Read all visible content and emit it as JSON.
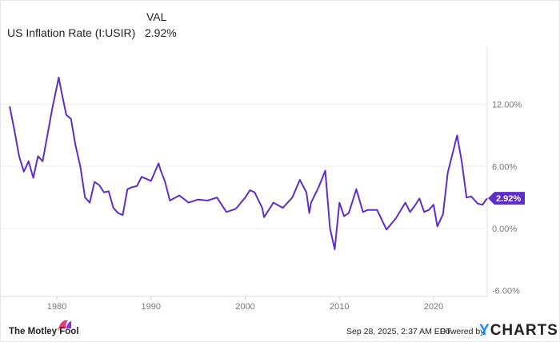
{
  "legend": {
    "col_header": "VAL",
    "series_label": "US Inflation Rate (I:USIR)",
    "series_value": "2.92%"
  },
  "chart_data": {
    "type": "line",
    "title": "US Inflation Rate (I:USIR)",
    "xlabel": "",
    "ylabel": "",
    "xlim": [
      1975,
      2025.75
    ],
    "ylim": [
      -6,
      16
    ],
    "x_ticks": [
      1980,
      1990,
      2000,
      2010,
      2020
    ],
    "x_tick_labels": [
      "1980",
      "1990",
      "2000",
      "2010",
      "2020"
    ],
    "y_ticks": [
      12,
      6,
      0,
      -6
    ],
    "y_tick_labels": [
      "12.00%",
      "6.00%",
      "0.00%",
      "-6.00%"
    ],
    "grid": true,
    "color": "#5f2eca",
    "last_value_label": "2.92%",
    "series": [
      {
        "name": "US Inflation Rate",
        "points": [
          [
            1975,
            11.8
          ],
          [
            1975.5,
            9.5
          ],
          [
            1976,
            7.0
          ],
          [
            1976.5,
            5.5
          ],
          [
            1977,
            6.5
          ],
          [
            1977.5,
            4.9
          ],
          [
            1978,
            7.0
          ],
          [
            1978.5,
            6.5
          ],
          [
            1979,
            9.0
          ],
          [
            1979.5,
            11.5
          ],
          [
            1980.2,
            14.6
          ],
          [
            1980.5,
            13.2
          ],
          [
            1981,
            11.0
          ],
          [
            1981.5,
            10.6
          ],
          [
            1982,
            8.0
          ],
          [
            1982.5,
            6.0
          ],
          [
            1983,
            3.0
          ],
          [
            1983.5,
            2.5
          ],
          [
            1984,
            4.5
          ],
          [
            1984.5,
            4.2
          ],
          [
            1985,
            3.5
          ],
          [
            1985.5,
            3.6
          ],
          [
            1986,
            2.0
          ],
          [
            1986.5,
            1.5
          ],
          [
            1987,
            1.3
          ],
          [
            1987.5,
            3.8
          ],
          [
            1988,
            4.0
          ],
          [
            1988.5,
            4.1
          ],
          [
            1989,
            5.0
          ],
          [
            1989.5,
            4.8
          ],
          [
            1990,
            4.6
          ],
          [
            1990.8,
            6.3
          ],
          [
            1991,
            5.7
          ],
          [
            1991.5,
            4.5
          ],
          [
            1992,
            2.7
          ],
          [
            1993,
            3.2
          ],
          [
            1994,
            2.5
          ],
          [
            1995,
            2.8
          ],
          [
            1996,
            2.7
          ],
          [
            1997,
            3.0
          ],
          [
            1998,
            1.6
          ],
          [
            1999,
            1.9
          ],
          [
            2000,
            3.0
          ],
          [
            2000.5,
            3.7
          ],
          [
            2001,
            3.5
          ],
          [
            2001.8,
            2.0
          ],
          [
            2002,
            1.1
          ],
          [
            2003,
            2.5
          ],
          [
            2004,
            2.0
          ],
          [
            2005,
            3.0
          ],
          [
            2005.8,
            4.7
          ],
          [
            2006.5,
            3.5
          ],
          [
            2006.8,
            1.5
          ],
          [
            2007,
            2.5
          ],
          [
            2007.8,
            4.0
          ],
          [
            2008.5,
            5.6
          ],
          [
            2009,
            0.0
          ],
          [
            2009.5,
            -2.0
          ],
          [
            2010,
            2.5
          ],
          [
            2010.5,
            1.2
          ],
          [
            2011,
            1.5
          ],
          [
            2011.8,
            3.8
          ],
          [
            2012.5,
            1.6
          ],
          [
            2013,
            1.8
          ],
          [
            2014,
            1.8
          ],
          [
            2015,
            -0.1
          ],
          [
            2016,
            1.0
          ],
          [
            2017,
            2.5
          ],
          [
            2017.5,
            1.6
          ],
          [
            2018,
            2.2
          ],
          [
            2018.5,
            2.9
          ],
          [
            2019,
            1.6
          ],
          [
            2019.5,
            1.8
          ],
          [
            2020,
            2.3
          ],
          [
            2020.4,
            0.2
          ],
          [
            2021,
            1.4
          ],
          [
            2021.5,
            5.4
          ],
          [
            2022.5,
            9.0
          ],
          [
            2023,
            6.4
          ],
          [
            2023.5,
            3.0
          ],
          [
            2024,
            3.1
          ],
          [
            2024.7,
            2.4
          ],
          [
            2025.2,
            2.3
          ],
          [
            2025.5,
            2.7
          ],
          [
            2025.7,
            2.92
          ]
        ]
      }
    ]
  },
  "footer": {
    "brand": "The Motley Fool",
    "timestamp": "Sep 28, 2025, 2:37 AM EDT",
    "powered_by": "Powered by",
    "ycharts": "YCHARTS"
  }
}
